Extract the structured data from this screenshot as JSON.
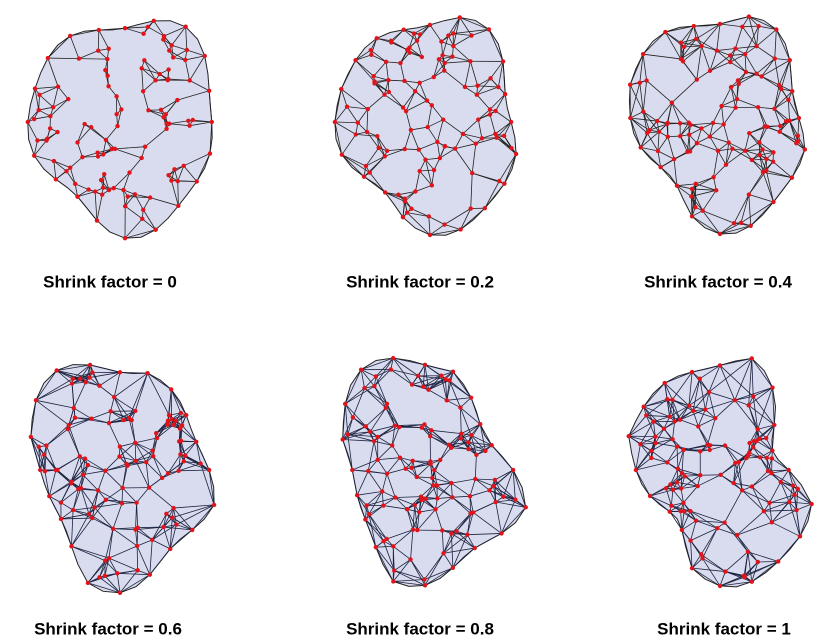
{
  "panels": [
    {
      "caption": "Shrink factor = 0"
    },
    {
      "caption": "Shrink factor = 0.2"
    },
    {
      "caption": "Shrink factor = 0.4"
    },
    {
      "caption": "Shrink factor = 0.6"
    },
    {
      "caption": "Shrink factor = 0.8"
    },
    {
      "caption": "Shrink factor = 1"
    }
  ]
}
